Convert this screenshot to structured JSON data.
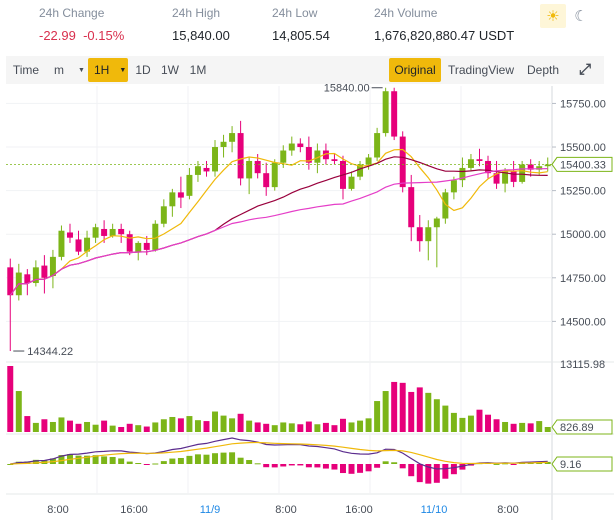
{
  "stats": [
    {
      "label": "24h Change",
      "value": "-22.99  -0.15%",
      "negative": true
    },
    {
      "label": "24h High",
      "value": "15,840.00",
      "negative": false
    },
    {
      "label": "24h Low",
      "value": "14,805.54",
      "negative": false
    },
    {
      "label": "24h Volume",
      "value": "1,676,820,880.47 USDT",
      "negative": false
    }
  ],
  "theme": {
    "light": "sun-icon",
    "dark": "moon-icon"
  },
  "toolbar": {
    "time": "Time",
    "minute": "m",
    "h1": "1H",
    "d1": "1D",
    "w1": "1W",
    "m1": "1M",
    "original": "Original",
    "tradingview": "TradingView",
    "depth": "Depth",
    "fullscreen_icon": "fullscreen-icon"
  },
  "colors": {
    "up": "#7cb518",
    "down": "#e6007a",
    "accent": "#f0b90b",
    "ma_short": "#f0b90b",
    "ma_long": "#e53ec8",
    "ma_mid": "#99003d"
  },
  "chart_data": {
    "type": "candlestick",
    "price_ticks": [
      "15750.00",
      "15500.00",
      "15250.00",
      "15000.00",
      "14750.00",
      "14500.00"
    ],
    "price_range": [
      14290,
      15850
    ],
    "current_price": "15400.33",
    "high_marker": "15840.00",
    "low_marker": "14344.22",
    "candles": [
      [
        14810,
        14860,
        14330,
        14650
      ],
      [
        14650,
        14830,
        14620,
        14780
      ],
      [
        14770,
        14800,
        14650,
        14720
      ],
      [
        14720,
        14850,
        14700,
        14810
      ],
      [
        14820,
        14880,
        14660,
        14750
      ],
      [
        14760,
        14910,
        14690,
        14870
      ],
      [
        14870,
        15050,
        14850,
        15020
      ],
      [
        15010,
        15060,
        14950,
        14980
      ],
      [
        14970,
        15020,
        14880,
        14900
      ],
      [
        14900,
        15020,
        14870,
        14980
      ],
      [
        14980,
        15060,
        14950,
        15040
      ],
      [
        15030,
        15080,
        14950,
        14990
      ],
      [
        14990,
        15060,
        14980,
        15030
      ],
      [
        15030,
        15060,
        14950,
        15000
      ],
      [
        15000,
        15020,
        14880,
        14900
      ],
      [
        14900,
        14960,
        14850,
        14950
      ],
      [
        14950,
        14990,
        14880,
        14910
      ],
      [
        14910,
        15080,
        14900,
        15060
      ],
      [
        15060,
        15200,
        15040,
        15160
      ],
      [
        15160,
        15260,
        15100,
        15240
      ],
      [
        15240,
        15330,
        15150,
        15210
      ],
      [
        15220,
        15380,
        15200,
        15340
      ],
      [
        15340,
        15420,
        15300,
        15390
      ],
      [
        15380,
        15420,
        15330,
        15360
      ],
      [
        15360,
        15540,
        15330,
        15500
      ],
      [
        15500,
        15570,
        15440,
        15530
      ],
      [
        15530,
        15620,
        15470,
        15580
      ],
      [
        15580,
        15650,
        15280,
        15320
      ],
      [
        15320,
        15440,
        15230,
        15420
      ],
      [
        15420,
        15460,
        15320,
        15350
      ],
      [
        15350,
        15410,
        15220,
        15270
      ],
      [
        15270,
        15430,
        15250,
        15410
      ],
      [
        15410,
        15510,
        15380,
        15480
      ],
      [
        15480,
        15560,
        15450,
        15520
      ],
      [
        15520,
        15550,
        15470,
        15500
      ],
      [
        15500,
        15560,
        15370,
        15410
      ],
      [
        15410,
        15520,
        15350,
        15480
      ],
      [
        15480,
        15520,
        15400,
        15430
      ],
      [
        15430,
        15460,
        15400,
        15420
      ],
      [
        15420,
        15450,
        15200,
        15260
      ],
      [
        15260,
        15360,
        15250,
        15330
      ],
      [
        15330,
        15420,
        15310,
        15400
      ],
      [
        15400,
        15460,
        15370,
        15440
      ],
      [
        15440,
        15610,
        15420,
        15580
      ],
      [
        15580,
        15840,
        15560,
        15820
      ],
      [
        15820,
        15840,
        15540,
        15560
      ],
      [
        15560,
        15590,
        15240,
        15270
      ],
      [
        15270,
        15340,
        14960,
        15040
      ],
      [
        15040,
        15110,
        14900,
        14960
      ],
      [
        14960,
        15080,
        14850,
        15040
      ],
      [
        15040,
        15100,
        14810,
        15090
      ],
      [
        15090,
        15260,
        15060,
        15240
      ],
      [
        15240,
        15330,
        15200,
        15310
      ],
      [
        15310,
        15440,
        15270,
        15380
      ],
      [
        15380,
        15460,
        15360,
        15430
      ],
      [
        15430,
        15490,
        15390,
        15420
      ],
      [
        15420,
        15450,
        15320,
        15350
      ],
      [
        15350,
        15420,
        15260,
        15290
      ],
      [
        15290,
        15380,
        15240,
        15360
      ],
      [
        15360,
        15420,
        15270,
        15300
      ],
      [
        15300,
        15420,
        15290,
        15400
      ],
      [
        15400,
        15430,
        15330,
        15370
      ],
      [
        15370,
        15420,
        15340,
        15390
      ],
      [
        15390,
        15440,
        15360,
        15400
      ]
    ],
    "volume_ticks": [
      "13115.98",
      "826.89"
    ],
    "volumes": [
      14500,
      9000,
      3500,
      2000,
      2800,
      2200,
      3200,
      2500,
      1800,
      2200,
      1600,
      2500,
      1400,
      1100,
      1800,
      1500,
      1200,
      2100,
      2800,
      3300,
      3000,
      3500,
      2600,
      2400,
      4500,
      3600,
      3000,
      4000,
      2500,
      2100,
      1800,
      1500,
      2100,
      1900,
      1700,
      2300,
      1700,
      2000,
      1500,
      2900,
      2100,
      2500,
      3000,
      6800,
      9000,
      11000,
      10800,
      8800,
      9800,
      8600,
      7200,
      5800,
      4200,
      3100,
      3600,
      4900,
      3800,
      2800,
      2200,
      1800,
      2000,
      1900,
      2400,
      1100
    ],
    "macd_tick": "9.16",
    "x_ticks": [
      "8:00",
      "16:00",
      "11/9",
      "8:00",
      "16:00",
      "11/10",
      "8:00"
    ]
  }
}
